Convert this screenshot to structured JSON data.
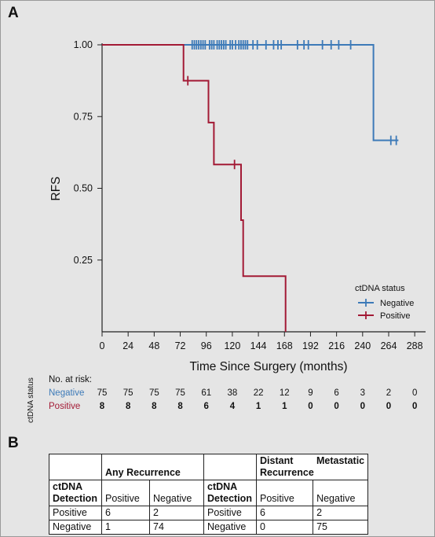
{
  "panels": {
    "a": "A",
    "b": "B"
  },
  "chart_data": {
    "type": "line",
    "subtype": "kaplan-meier",
    "ylabel": "RFS",
    "xlabel": "Time Since Surgery (months)",
    "xlim": [
      0,
      298
    ],
    "ylim": [
      0,
      1.0
    ],
    "x_ticks": [
      "0",
      "24",
      "48",
      "72",
      "96",
      "120",
      "144",
      "168",
      "192",
      "216",
      "240",
      "264",
      "288"
    ],
    "y_ticks": [
      "1.00",
      "0.75",
      "0.50",
      "0.25"
    ],
    "y_tick_values": [
      1.0,
      0.75,
      0.5,
      0.25
    ],
    "legend": {
      "title": "ctDNA status",
      "position": "lower-right"
    },
    "series": [
      {
        "name": "Negative",
        "color": "#3d7ab8",
        "steps": [
          [
            0,
            1.0
          ],
          [
            250,
            1.0
          ],
          [
            250,
            0.667
          ],
          [
            273,
            0.667
          ]
        ],
        "censored": [
          [
            83,
            1.0
          ],
          [
            85,
            1.0
          ],
          [
            87,
            1.0
          ],
          [
            89,
            1.0
          ],
          [
            91,
            1.0
          ],
          [
            93,
            1.0
          ],
          [
            95,
            1.0
          ],
          [
            99,
            1.0
          ],
          [
            101,
            1.0
          ],
          [
            103,
            1.0
          ],
          [
            106,
            1.0
          ],
          [
            108,
            1.0
          ],
          [
            110,
            1.0
          ],
          [
            112,
            1.0
          ],
          [
            114,
            1.0
          ],
          [
            118,
            1.0
          ],
          [
            120,
            1.0
          ],
          [
            123,
            1.0
          ],
          [
            126,
            1.0
          ],
          [
            128,
            1.0
          ],
          [
            130,
            1.0
          ],
          [
            132,
            1.0
          ],
          [
            134,
            1.0
          ],
          [
            139,
            1.0
          ],
          [
            143,
            1.0
          ],
          [
            151,
            1.0
          ],
          [
            158,
            1.0
          ],
          [
            162,
            1.0
          ],
          [
            165,
            1.0
          ],
          [
            180,
            1.0
          ],
          [
            186,
            1.0
          ],
          [
            190,
            1.0
          ],
          [
            203,
            1.0
          ],
          [
            211,
            1.0
          ],
          [
            218,
            1.0
          ],
          [
            229,
            1.0
          ],
          [
            266,
            0.667
          ],
          [
            271,
            0.667
          ]
        ]
      },
      {
        "name": "Positive",
        "color": "#a31a35",
        "steps": [
          [
            0,
            1.0
          ],
          [
            75,
            1.0
          ],
          [
            75,
            0.875
          ],
          [
            98,
            0.875
          ],
          [
            98,
            0.729
          ],
          [
            103,
            0.729
          ],
          [
            103,
            0.583
          ],
          [
            128,
            0.583
          ],
          [
            128,
            0.389
          ],
          [
            130,
            0.389
          ],
          [
            130,
            0.194
          ],
          [
            169,
            0.194
          ],
          [
            169,
            0.0
          ]
        ],
        "censored": [
          [
            79,
            0.875
          ],
          [
            122,
            0.583
          ]
        ]
      }
    ],
    "risk_table": {
      "title": "No. at risk:",
      "group_label": "ctDNA status",
      "rows": [
        {
          "name": "Negative",
          "color": "#3d7ab8",
          "bold": false,
          "values": [
            "75",
            "75",
            "75",
            "75",
            "61",
            "38",
            "22",
            "12",
            "9",
            "6",
            "3",
            "2",
            "0"
          ]
        },
        {
          "name": "Positive",
          "color": "#a31a35",
          "bold": true,
          "values": [
            "8",
            "8",
            "8",
            "8",
            "6",
            "4",
            "1",
            "1",
            "0",
            "0",
            "0",
            "0",
            "0"
          ]
        }
      ]
    }
  },
  "table": {
    "header": {
      "any_recurrence": "Any Recurrence",
      "distant": "Distant Recurrence",
      "metastatic": "Metastatic"
    },
    "subheader": {
      "detection": "ctDNA Detection",
      "positive": "Positive",
      "negative": "Negative"
    },
    "rows": [
      {
        "label": "Positive",
        "any_pos": "6",
        "any_neg": "2",
        "dist_pos": "6",
        "dist_neg": "2"
      },
      {
        "label": "Negative",
        "any_pos": "1",
        "any_neg": "74",
        "dist_pos": "0",
        "dist_neg": "75"
      }
    ]
  }
}
